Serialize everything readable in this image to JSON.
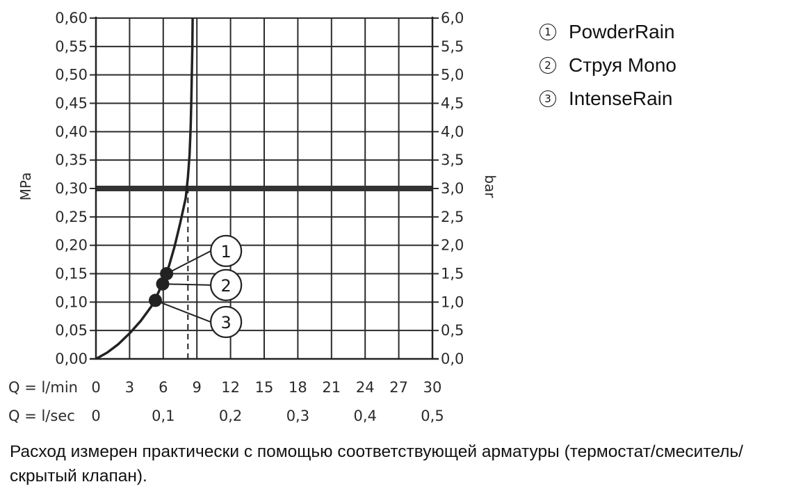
{
  "chart_data": {
    "type": "line",
    "title": "",
    "ylabel": "MPa",
    "y2label": "bar",
    "ylim": [
      0,
      0.6
    ],
    "xlim": [
      0,
      30
    ],
    "y_ticks": [
      "0,00",
      "0,05",
      "0,10",
      "0,15",
      "0,20",
      "0,25",
      "0,30",
      "0,35",
      "0,40",
      "0,45",
      "0,50",
      "0,55",
      "0,60"
    ],
    "y2_ticks": [
      "0,0",
      "0,5",
      "1,0",
      "1,5",
      "2,0",
      "2,5",
      "3,0",
      "3,5",
      "4,0",
      "4,5",
      "5,0",
      "5,5",
      "6,0"
    ],
    "x_label_lmin": "Q = l/min",
    "x_ticks_lmin": [
      "0",
      "3",
      "6",
      "9",
      "12",
      "15",
      "18",
      "21",
      "24",
      "27",
      "30"
    ],
    "x_label_lsec": "Q = l/sec",
    "x_ticks_lsec": [
      {
        "q": 0,
        "label": "0"
      },
      {
        "q": 6,
        "label": "0,1"
      },
      {
        "q": 12,
        "label": "0,2"
      },
      {
        "q": 18,
        "label": "0,3"
      },
      {
        "q": 24,
        "label": "0,4"
      },
      {
        "q": 30,
        "label": "0,5"
      }
    ],
    "curve": {
      "x": [
        0,
        1,
        2,
        3,
        4,
        5,
        5.6,
        6,
        6.5,
        7,
        7.5,
        8,
        8.2,
        8.35,
        8.45,
        8.5,
        8.55,
        8.6,
        8.62
      ],
      "y": [
        0,
        0.011,
        0.026,
        0.045,
        0.067,
        0.094,
        0.118,
        0.138,
        0.163,
        0.197,
        0.238,
        0.283,
        0.32,
        0.36,
        0.41,
        0.45,
        0.5,
        0.55,
        0.6
      ]
    },
    "reference_line": {
      "y": 0.3
    },
    "dashed_marker": {
      "x": 8.2,
      "y0": 0,
      "y1": 0.3
    },
    "points": [
      {
        "id": "1",
        "x": 6.3,
        "y": 0.15
      },
      {
        "id": "2",
        "x": 5.95,
        "y": 0.132
      },
      {
        "id": "3",
        "x": 5.3,
        "y": 0.103
      }
    ],
    "callouts": [
      {
        "label": "1",
        "x": 11.6,
        "y": 0.19
      },
      {
        "label": "2",
        "x": 11.6,
        "y": 0.13
      },
      {
        "label": "3",
        "x": 11.6,
        "y": 0.065
      }
    ],
    "grid": true
  },
  "legend": [
    {
      "num": "1",
      "label": "PowderRain"
    },
    {
      "num": "2",
      "label": "Струя Mono"
    },
    {
      "num": "3",
      "label": "IntenseRain"
    }
  ],
  "note": "Расход измерен практически с помощью соответствующей арматуры (термостат/смеситель/скрытый клапан)."
}
